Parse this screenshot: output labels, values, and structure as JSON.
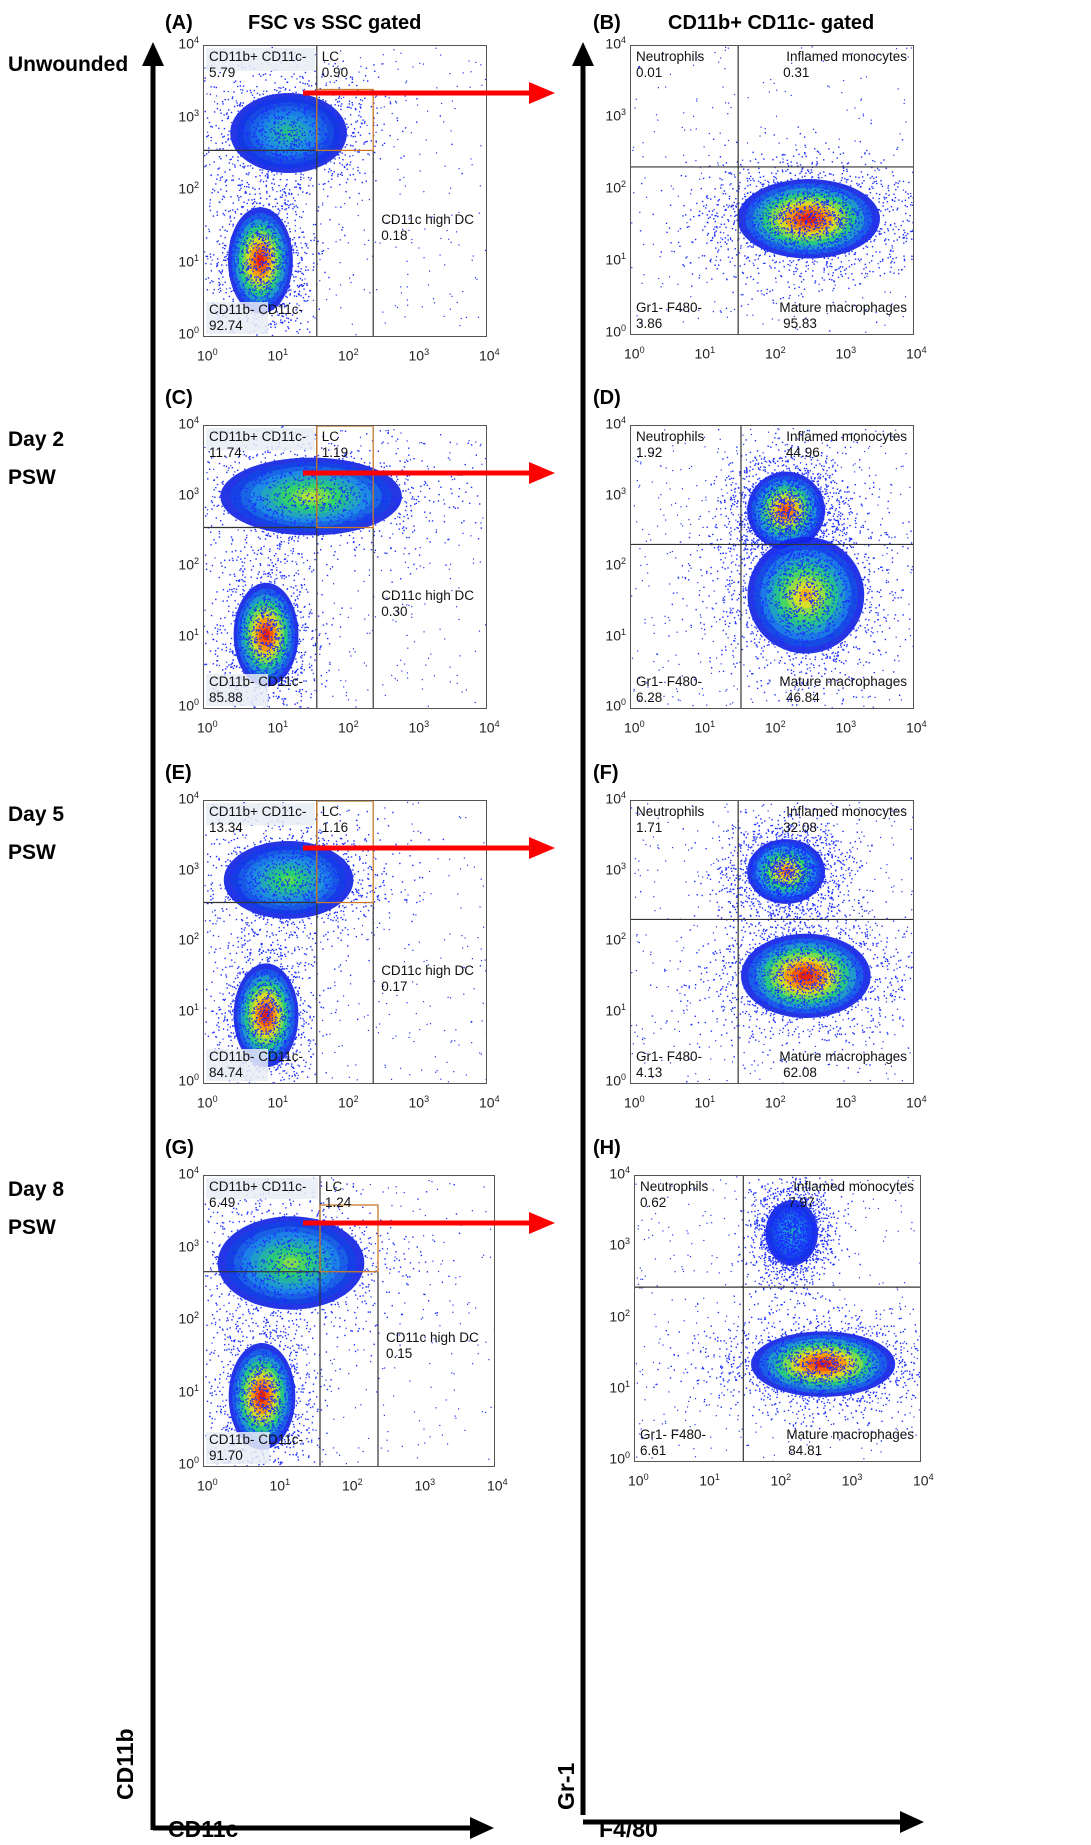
{
  "headers": {
    "left_panel": "(A)",
    "left_title": "FSC vs SSC gated",
    "right_panel": "(B)",
    "right_title": "CD11b+ CD11c- gated"
  },
  "rows": [
    {
      "label1": "Unwounded",
      "label2": "",
      "left_panel": "(A)",
      "right_panel": "(B)",
      "left": {
        "tl_name": "CD11b+ CD11c-",
        "tl_val": "5.79",
        "lc_name": "LC",
        "lc_val": "0.90",
        "dc_name": "CD11c high DC",
        "dc_val": "0.18",
        "bl_name": "CD11b- CD11c-",
        "bl_val": "92.74"
      },
      "right": {
        "tl_name": "Neutrophils",
        "tl_val": "0.01",
        "tr_name": "Inflamed monocytes",
        "tr_val": "0.31",
        "bl_name": "Gr1- F480-",
        "bl_val": "3.86",
        "br_name": "Mature macrophages",
        "br_val": "95.83"
      }
    },
    {
      "label1": "Day 2",
      "label2": "PSW",
      "left_panel": "(C)",
      "right_panel": "(D)",
      "left": {
        "tl_name": "CD11b+ CD11c-",
        "tl_val": "11.74",
        "lc_name": "LC",
        "lc_val": "1.19",
        "dc_name": "CD11c high DC",
        "dc_val": "0.30",
        "bl_name": "CD11b- CD11c-",
        "bl_val": "85.88"
      },
      "right": {
        "tl_name": "Neutrophils",
        "tl_val": "1.92",
        "tr_name": "Inflamed monocytes",
        "tr_val": "44.96",
        "bl_name": "Gr1- F480-",
        "bl_val": "6.28",
        "br_name": "Mature macrophages",
        "br_val": "46.84"
      }
    },
    {
      "label1": "Day 5",
      "label2": "PSW",
      "left_panel": "(E)",
      "right_panel": "(F)",
      "left": {
        "tl_name": "CD11b+ CD11c-",
        "tl_val": "13.34",
        "lc_name": "LC",
        "lc_val": "1.16",
        "dc_name": "CD11c high DC",
        "dc_val": "0.17",
        "bl_name": "CD11b- CD11c-",
        "bl_val": "84.74"
      },
      "right": {
        "tl_name": "Neutrophils",
        "tl_val": "1.71",
        "tr_name": "Inflamed monocytes",
        "tr_val": "32.08",
        "bl_name": "Gr1- F480-",
        "bl_val": "4.13",
        "br_name": "Mature macrophages",
        "br_val": "62.08"
      }
    },
    {
      "label1": "Day 8",
      "label2": "PSW",
      "left_panel": "(G)",
      "right_panel": "(H)",
      "left": {
        "tl_name": "CD11b+ CD11c-",
        "tl_val": "6.49",
        "lc_name": "LC",
        "lc_val": "1.24",
        "dc_name": "CD11c high DC",
        "dc_val": "0.15",
        "bl_name": "CD11b- CD11c-",
        "bl_val": "91.70"
      },
      "right": {
        "tl_name": "Neutrophils",
        "tl_val": "0.62",
        "tr_name": "Inflamed monocytes",
        "tr_val": "7.97",
        "bl_name": "Gr1- F480-",
        "bl_val": "6.61",
        "br_name": "Mature macrophages",
        "br_val": "84.81"
      }
    }
  ],
  "axes": {
    "left_y": "CD11b",
    "left_x": "CD11c",
    "right_y": "Gr-1",
    "right_x": "F4/80",
    "tick_base": "10",
    "tick_exps": [
      "0",
      "1",
      "2",
      "3",
      "4"
    ]
  },
  "colors": {
    "arrow": "#ff0000",
    "gate_lines": "#333333",
    "lc_gate": "#c8782a",
    "density_low": "#1020e0",
    "density_mid": "#2ad46a",
    "density_high": "#ff8800"
  }
}
